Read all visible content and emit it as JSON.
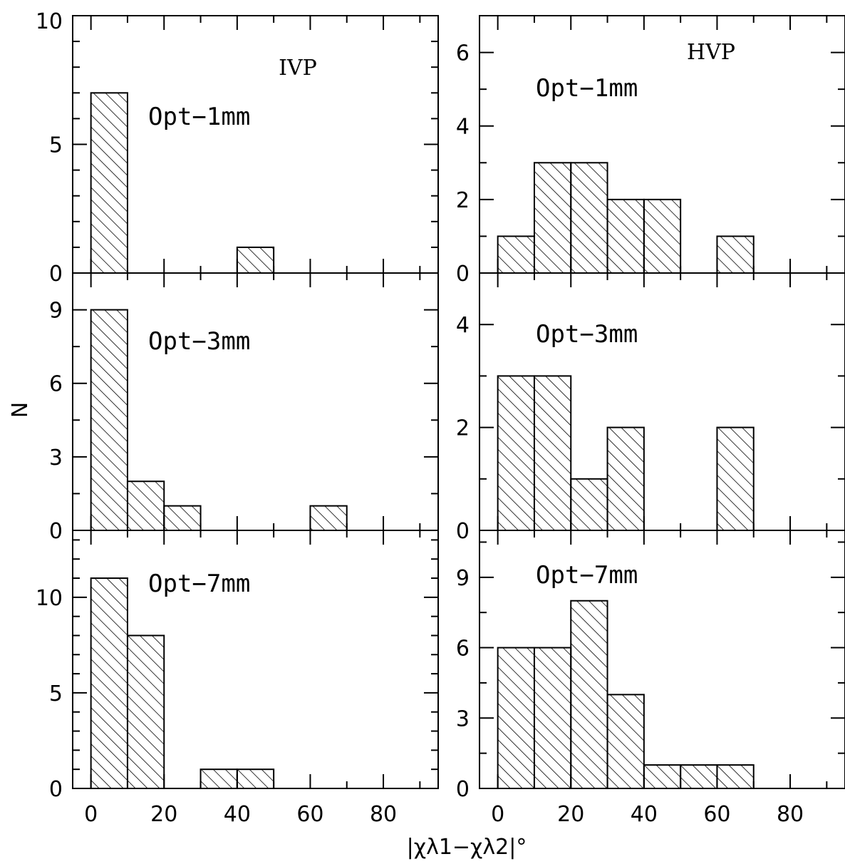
{
  "ylabel": "N",
  "xlabel": "|χλ1−χλ2|°",
  "chart_data": [
    {
      "type": "bar",
      "group": "IVP",
      "title": "Opt−1mm",
      "show_group": true,
      "bin_edges": [
        0,
        10,
        20,
        30,
        40,
        50,
        60,
        70,
        80,
        90
      ],
      "values": [
        7,
        0,
        0,
        0,
        1,
        0,
        0,
        0,
        0
      ],
      "xlim": [
        -5,
        95
      ],
      "ylim": [
        0,
        10
      ],
      "yticks": [
        0,
        5,
        10
      ],
      "xticks": [
        0,
        20,
        40,
        60,
        80
      ]
    },
    {
      "type": "bar",
      "group": "HVP",
      "title": "Opt−1mm",
      "show_group": true,
      "bin_edges": [
        0,
        10,
        20,
        30,
        40,
        50,
        60,
        70,
        80,
        90
      ],
      "values": [
        1,
        3,
        3,
        2,
        2,
        0,
        1,
        0,
        0
      ],
      "xlim": [
        -5,
        95
      ],
      "ylim": [
        0,
        7
      ],
      "yticks": [
        0,
        2,
        4,
        6
      ],
      "xticks": [
        0,
        20,
        40,
        60,
        80
      ]
    },
    {
      "type": "bar",
      "group": "IVP",
      "title": "Opt−3mm",
      "show_group": false,
      "bin_edges": [
        0,
        10,
        20,
        30,
        40,
        50,
        60,
        70,
        80,
        90
      ],
      "values": [
        9,
        2,
        1,
        0,
        0,
        0,
        1,
        0,
        0
      ],
      "xlim": [
        -5,
        95
      ],
      "ylim": [
        0,
        10.5
      ],
      "yticks": [
        0,
        3,
        6,
        9
      ],
      "xticks": [
        0,
        20,
        40,
        60,
        80
      ]
    },
    {
      "type": "bar",
      "group": "HVP",
      "title": "Opt−3mm",
      "show_group": false,
      "bin_edges": [
        0,
        10,
        20,
        30,
        40,
        50,
        60,
        70,
        80,
        90
      ],
      "values": [
        3,
        3,
        1,
        2,
        0,
        0,
        2,
        0,
        0
      ],
      "xlim": [
        -5,
        95
      ],
      "ylim": [
        0,
        5
      ],
      "yticks": [
        0,
        2,
        4
      ],
      "xticks": [
        0,
        20,
        40,
        60,
        80
      ]
    },
    {
      "type": "bar",
      "group": "IVP",
      "title": "Opt−7mm",
      "show_group": false,
      "bin_edges": [
        0,
        10,
        20,
        30,
        40,
        50,
        60,
        70,
        80,
        90
      ],
      "values": [
        11,
        8,
        0,
        1,
        1,
        0,
        0,
        0,
        0
      ],
      "xlim": [
        -5,
        95
      ],
      "ylim": [
        0,
        13.5
      ],
      "yticks": [
        0,
        5,
        10
      ],
      "xticks": [
        0,
        20,
        40,
        60,
        80
      ]
    },
    {
      "type": "bar",
      "group": "HVP",
      "title": "Opt−7mm",
      "show_group": false,
      "bin_edges": [
        0,
        10,
        20,
        30,
        40,
        50,
        60,
        70,
        80,
        90
      ],
      "values": [
        6,
        6,
        8,
        4,
        1,
        1,
        1,
        0,
        0
      ],
      "xlim": [
        -5,
        95
      ],
      "ylim": [
        0,
        11
      ],
      "yticks": [
        0,
        3,
        6,
        9
      ],
      "xticks": [
        0,
        20,
        40,
        60,
        80
      ]
    }
  ]
}
